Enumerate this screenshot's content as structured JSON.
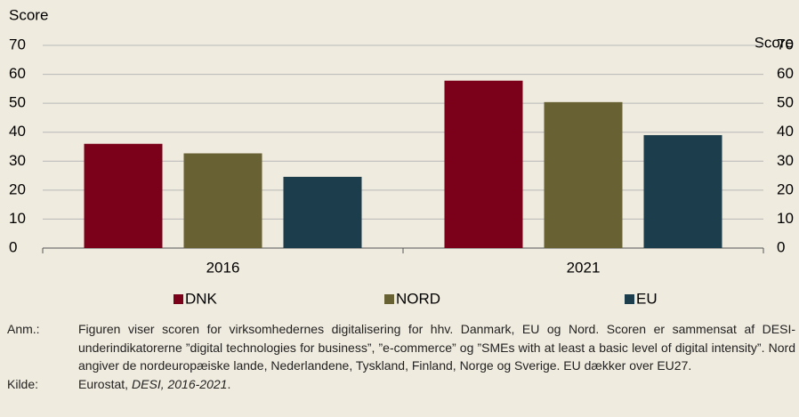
{
  "chart_data": {
    "type": "bar",
    "y_label": "Score",
    "y2_label": "Score",
    "categories": [
      "2016",
      "2021"
    ],
    "series": [
      {
        "name": "DNK",
        "color": "#7b0019",
        "values": [
          36,
          57.8
        ]
      },
      {
        "name": "NORD",
        "color": "#686133",
        "values": [
          32.7,
          50.4
        ]
      },
      {
        "name": "EU",
        "color": "#1c3d4c",
        "values": [
          24.6,
          39
        ]
      }
    ],
    "ylim": [
      0,
      70
    ],
    "yticks": [
      0,
      10,
      20,
      30,
      40,
      50,
      60,
      70
    ],
    "y2lim": [
      0,
      70
    ],
    "y2ticks": [
      0,
      10,
      20,
      30,
      40,
      50,
      60,
      70
    ],
    "grid": true,
    "legend": "bottom"
  },
  "notes": {
    "anm_label": "Anm.:",
    "anm_text": "Figuren viser scoren for virksomhedernes digitalisering for hhv. Danmark, EU og Nord. Scoren er sammensat af DESI-underindikatorerne ”digital technologies for business”, ”e-commerce” og ”SMEs with at least a basic level of digital intensity”. Nord angiver de nordeuropæiske lande, Nederlandene, Tyskland, Finland, Norge og Sverige. EU dækker over EU27.",
    "kilde_label": "Kilde:",
    "kilde_parts": [
      "Eurostat,",
      "DESI, 2016-2021",
      "."
    ]
  }
}
